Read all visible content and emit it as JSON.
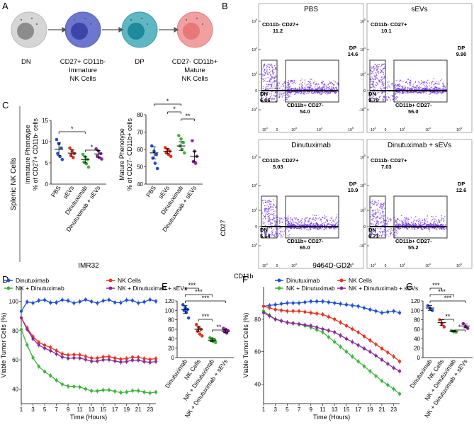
{
  "colors": {
    "blue": "#1f4fd6",
    "red": "#e8321e",
    "green": "#3cb43c",
    "purple": "#8a2a9a",
    "dot": "#6a2ce0",
    "dn_cell": "#9a9a9a",
    "imm_cell": "#5a64c8",
    "dp_cell": "#3aa0b0",
    "mat_cell": "#e07070"
  },
  "panelA": {
    "letter": "A",
    "cells": [
      {
        "label": "DN"
      },
      {
        "label": "CD27+ CD11b-",
        "label2": "Immature",
        "label3": "NK Cells"
      },
      {
        "label": "DP"
      },
      {
        "label": "CD27- CD11b+",
        "label2": "Mature",
        "label3": "NK Cells"
      }
    ]
  },
  "panelB": {
    "letter": "B",
    "ylabel": "CD27",
    "xlabel": "CD11b",
    "plots": [
      {
        "title": "PBS",
        "ul_label": "CD11b- CD27+",
        "ul": "11.2",
        "dp_label": "DP",
        "dp": "14.6",
        "dn_label": "DN",
        "dn": "6.06",
        "lr_label": "CD11b+ CD27-",
        "lr": "54.0"
      },
      {
        "title": "sEVs",
        "ul_label": "CD11b- CD27+",
        "ul": "10.1",
        "dp_label": "DP",
        "dp": "9.90",
        "dn_label": "DN",
        "dn": "9.79",
        "lr_label": "CD11b+ CD27-",
        "lr": "56.0"
      },
      {
        "title": "Dinutuximab",
        "ul_label": "CD11b- CD27+",
        "ul": "5.03",
        "dp_label": "DP",
        "dp": "10.9",
        "dn_label": "DN",
        "dn": "5.64",
        "lr_label": "CD11b+ CD27-",
        "lr": "65.0"
      },
      {
        "title": "Dinutuximab + sEVs",
        "ul_label": "CD11b- CD27+",
        "ul": "7.03",
        "dp_label": "DP",
        "dp": "12.6",
        "dn_label": "DN",
        "dn": "6.71",
        "lr_label": "CD11b+ CD27-",
        "lr": "55.2"
      }
    ],
    "yticks": [
      "10^5",
      "10^4",
      "10^3",
      "0",
      "-10^3"
    ],
    "xticks": [
      "-10^3",
      "0",
      "10^3",
      "10^4",
      "10^5"
    ]
  },
  "panelC": {
    "letter": "C",
    "outer_title": "Splenic NK Cells",
    "categories": [
      "PBS",
      "sEVs",
      "Dinutuximab",
      "Dinutuximab + sEVs"
    ],
    "left": {
      "ylabel1": "Immature Phenotype",
      "ylabel2": "% of CD27+ CD11b- cells",
      "yticks": [
        "0",
        "5",
        "10",
        "15"
      ],
      "ylim": [
        0,
        15
      ],
      "means": [
        8.2,
        7.3,
        5.8,
        7.1
      ],
      "points": [
        [
          10.5,
          9.5,
          8.5,
          7.2,
          6.5,
          5.8
        ],
        [
          8.5,
          7.8,
          7.2,
          6.8,
          6.2
        ],
        [
          7.0,
          6.4,
          5.8,
          5.2,
          4.8,
          4.0
        ],
        [
          8.3,
          7.8,
          7.2,
          6.6,
          6.2,
          5.9
        ]
      ],
      "sig": [
        {
          "from": 0,
          "to": 2,
          "label": "*"
        },
        {
          "from": 2,
          "to": 3,
          "label": "*"
        }
      ]
    },
    "right": {
      "ylabel1": "Mature Phenotype",
      "ylabel2": "% of CD27- CD11b+ cells",
      "yticks": [
        "40",
        "50",
        "60",
        "70",
        "80"
      ],
      "ylim": [
        40,
        80
      ],
      "means": [
        58,
        59,
        62,
        56
      ],
      "points": [
        [
          62,
          59,
          57,
          55,
          52,
          49
        ],
        [
          61,
          60,
          59,
          58,
          57,
          56
        ],
        [
          68,
          66,
          64,
          62,
          60,
          58
        ],
        [
          65,
          59,
          56,
          53,
          52
        ]
      ],
      "sig": [
        {
          "from": 0,
          "to": 2,
          "label": "*"
        },
        {
          "from": 1,
          "to": 2,
          "label": "*"
        },
        {
          "from": 2,
          "to": 3,
          "label": "**"
        }
      ]
    }
  },
  "chart_data": [
    {
      "type": "line",
      "panel": "D",
      "title": "IMR32",
      "xlabel": "Time (Hours)",
      "ylabel": "Viable Tumor Cells (%)",
      "xlim": [
        1,
        24
      ],
      "ylim": [
        30,
        110
      ],
      "xticks": [
        "1",
        "3",
        "5",
        "7",
        "9",
        "11",
        "13",
        "15",
        "17",
        "19",
        "21",
        "23"
      ],
      "yticks": [
        "40",
        "60",
        "80",
        "100"
      ],
      "series": [
        {
          "name": "Dinutuximab",
          "color": "#1f4fd6",
          "start": 92,
          "end": 100,
          "k": 0.5,
          "flat": true
        },
        {
          "name": "NK Cells",
          "color": "#e8321e",
          "start": 88,
          "end": 61,
          "k": 0.28
        },
        {
          "name": "NK + Dinutuximab",
          "color": "#3cb43c",
          "start": 80,
          "end": 38,
          "k": 0.28
        },
        {
          "name": "NK + Dinutuximab + sEVs",
          "color": "#8a2a9a",
          "start": 88,
          "end": 59,
          "k": 0.3
        }
      ]
    },
    {
      "type": "scatter",
      "panel": "E",
      "ylabel": "Viable TumorCells (%)",
      "yticks": [
        "0",
        "20",
        "40",
        "60",
        "80",
        "100",
        "120"
      ],
      "ylim": [
        0,
        120
      ],
      "categories": [
        "Dinutuximab",
        "NK Cells",
        "NK + Dinutuximab",
        "NK + Dinutuximab + sEVs"
      ],
      "means": [
        102,
        60,
        37,
        56
      ],
      "points": [
        [
          112,
          106,
          102,
          100,
          96,
          84
        ],
        [
          70,
          64,
          60,
          56,
          50,
          46
        ],
        [
          42,
          40,
          38,
          36,
          34,
          32
        ],
        [
          62,
          60,
          57,
          55,
          52
        ]
      ],
      "sig": [
        {
          "from": 0,
          "to": 1,
          "label": "***"
        },
        {
          "from": 0,
          "to": 2,
          "label": "***"
        },
        {
          "from": 0,
          "to": 3,
          "label": "***"
        },
        {
          "from": 1,
          "to": 2,
          "label": "***"
        },
        {
          "from": 2,
          "to": 3,
          "label": "**"
        }
      ]
    },
    {
      "type": "line",
      "panel": "F",
      "title": "9464D-GD2",
      "xlabel": "Time (Hours)",
      "ylabel": "Viable Tumor Cells (%)",
      "xlim": [
        1,
        24
      ],
      "ylim": [
        28,
        100
      ],
      "xticks": [
        "1",
        "3",
        "5",
        "7",
        "9",
        "11",
        "13",
        "15",
        "17",
        "19",
        "21",
        "23"
      ],
      "yticks": [
        "40",
        "60",
        "80"
      ],
      "series": [
        {
          "name": "Dinutuximab",
          "color": "#1f4fd6",
          "points": [
            [
              1,
              88
            ],
            [
              3,
              89
            ],
            [
              5,
              90
            ],
            [
              7,
              90
            ],
            [
              9,
              91
            ],
            [
              11,
              91
            ],
            [
              13,
              90
            ],
            [
              15,
              89
            ],
            [
              17,
              88
            ],
            [
              19,
              86
            ],
            [
              21,
              84
            ],
            [
              23,
              85
            ],
            [
              24,
              84
            ]
          ]
        },
        {
          "name": "NK Cells",
          "color": "#e8321e",
          "points": [
            [
              1,
              88
            ],
            [
              3,
              86
            ],
            [
              5,
              85
            ],
            [
              7,
              85
            ],
            [
              9,
              84
            ],
            [
              11,
              83
            ],
            [
              13,
              80
            ],
            [
              15,
              76
            ],
            [
              17,
              72
            ],
            [
              19,
              67
            ],
            [
              21,
              62
            ],
            [
              23,
              57
            ],
            [
              24,
              54
            ]
          ]
        },
        {
          "name": "NK + Dinutuximab",
          "color": "#3cb43c",
          "points": [
            [
              1,
              85
            ],
            [
              3,
              80
            ],
            [
              5,
              78
            ],
            [
              7,
              77
            ],
            [
              9,
              75
            ],
            [
              11,
              72
            ],
            [
              13,
              66
            ],
            [
              15,
              60
            ],
            [
              17,
              54
            ],
            [
              19,
              48
            ],
            [
              21,
              42
            ],
            [
              23,
              37
            ],
            [
              24,
              34
            ]
          ]
        },
        {
          "name": "NK + Dinutuximab + sEVs",
          "color": "#8a2a9a",
          "points": [
            [
              1,
              84
            ],
            [
              3,
              80
            ],
            [
              5,
              78
            ],
            [
              7,
              77
            ],
            [
              9,
              76
            ],
            [
              11,
              74
            ],
            [
              13,
              72
            ],
            [
              15,
              68
            ],
            [
              17,
              64
            ],
            [
              19,
              60
            ],
            [
              21,
              55
            ],
            [
              23,
              50
            ],
            [
              24,
              48
            ]
          ]
        }
      ]
    },
    {
      "type": "scatter",
      "panel": "G",
      "ylabel": "Viable Tumor Cells (%)",
      "yticks": [
        "0",
        "20",
        "40",
        "60",
        "80",
        "100",
        "120"
      ],
      "ylim": [
        0,
        120
      ],
      "categories": [
        "Dinutuximab",
        "NK Cells",
        "NK + Dinutuximab",
        "NK + Dinutuximab + sEVs"
      ],
      "means": [
        105,
        74,
        56,
        67
      ],
      "points": [
        [
          110,
          104,
          100
        ],
        [
          80,
          72,
          65
        ],
        [
          57,
          55,
          54
        ],
        [
          72,
          66,
          62
        ]
      ],
      "sig": [
        {
          "from": 0,
          "to": 1,
          "label": "***"
        },
        {
          "from": 0,
          "to": 2,
          "label": "***"
        },
        {
          "from": 0,
          "to": 3,
          "label": "***"
        },
        {
          "from": 1,
          "to": 2,
          "label": "**"
        },
        {
          "from": 2,
          "to": 3,
          "label": "*"
        }
      ]
    }
  ],
  "panelD": {
    "letter": "D"
  },
  "panelE": {
    "letter": "E"
  },
  "panelF": {
    "letter": "F"
  },
  "panelG": {
    "letter": "G"
  }
}
